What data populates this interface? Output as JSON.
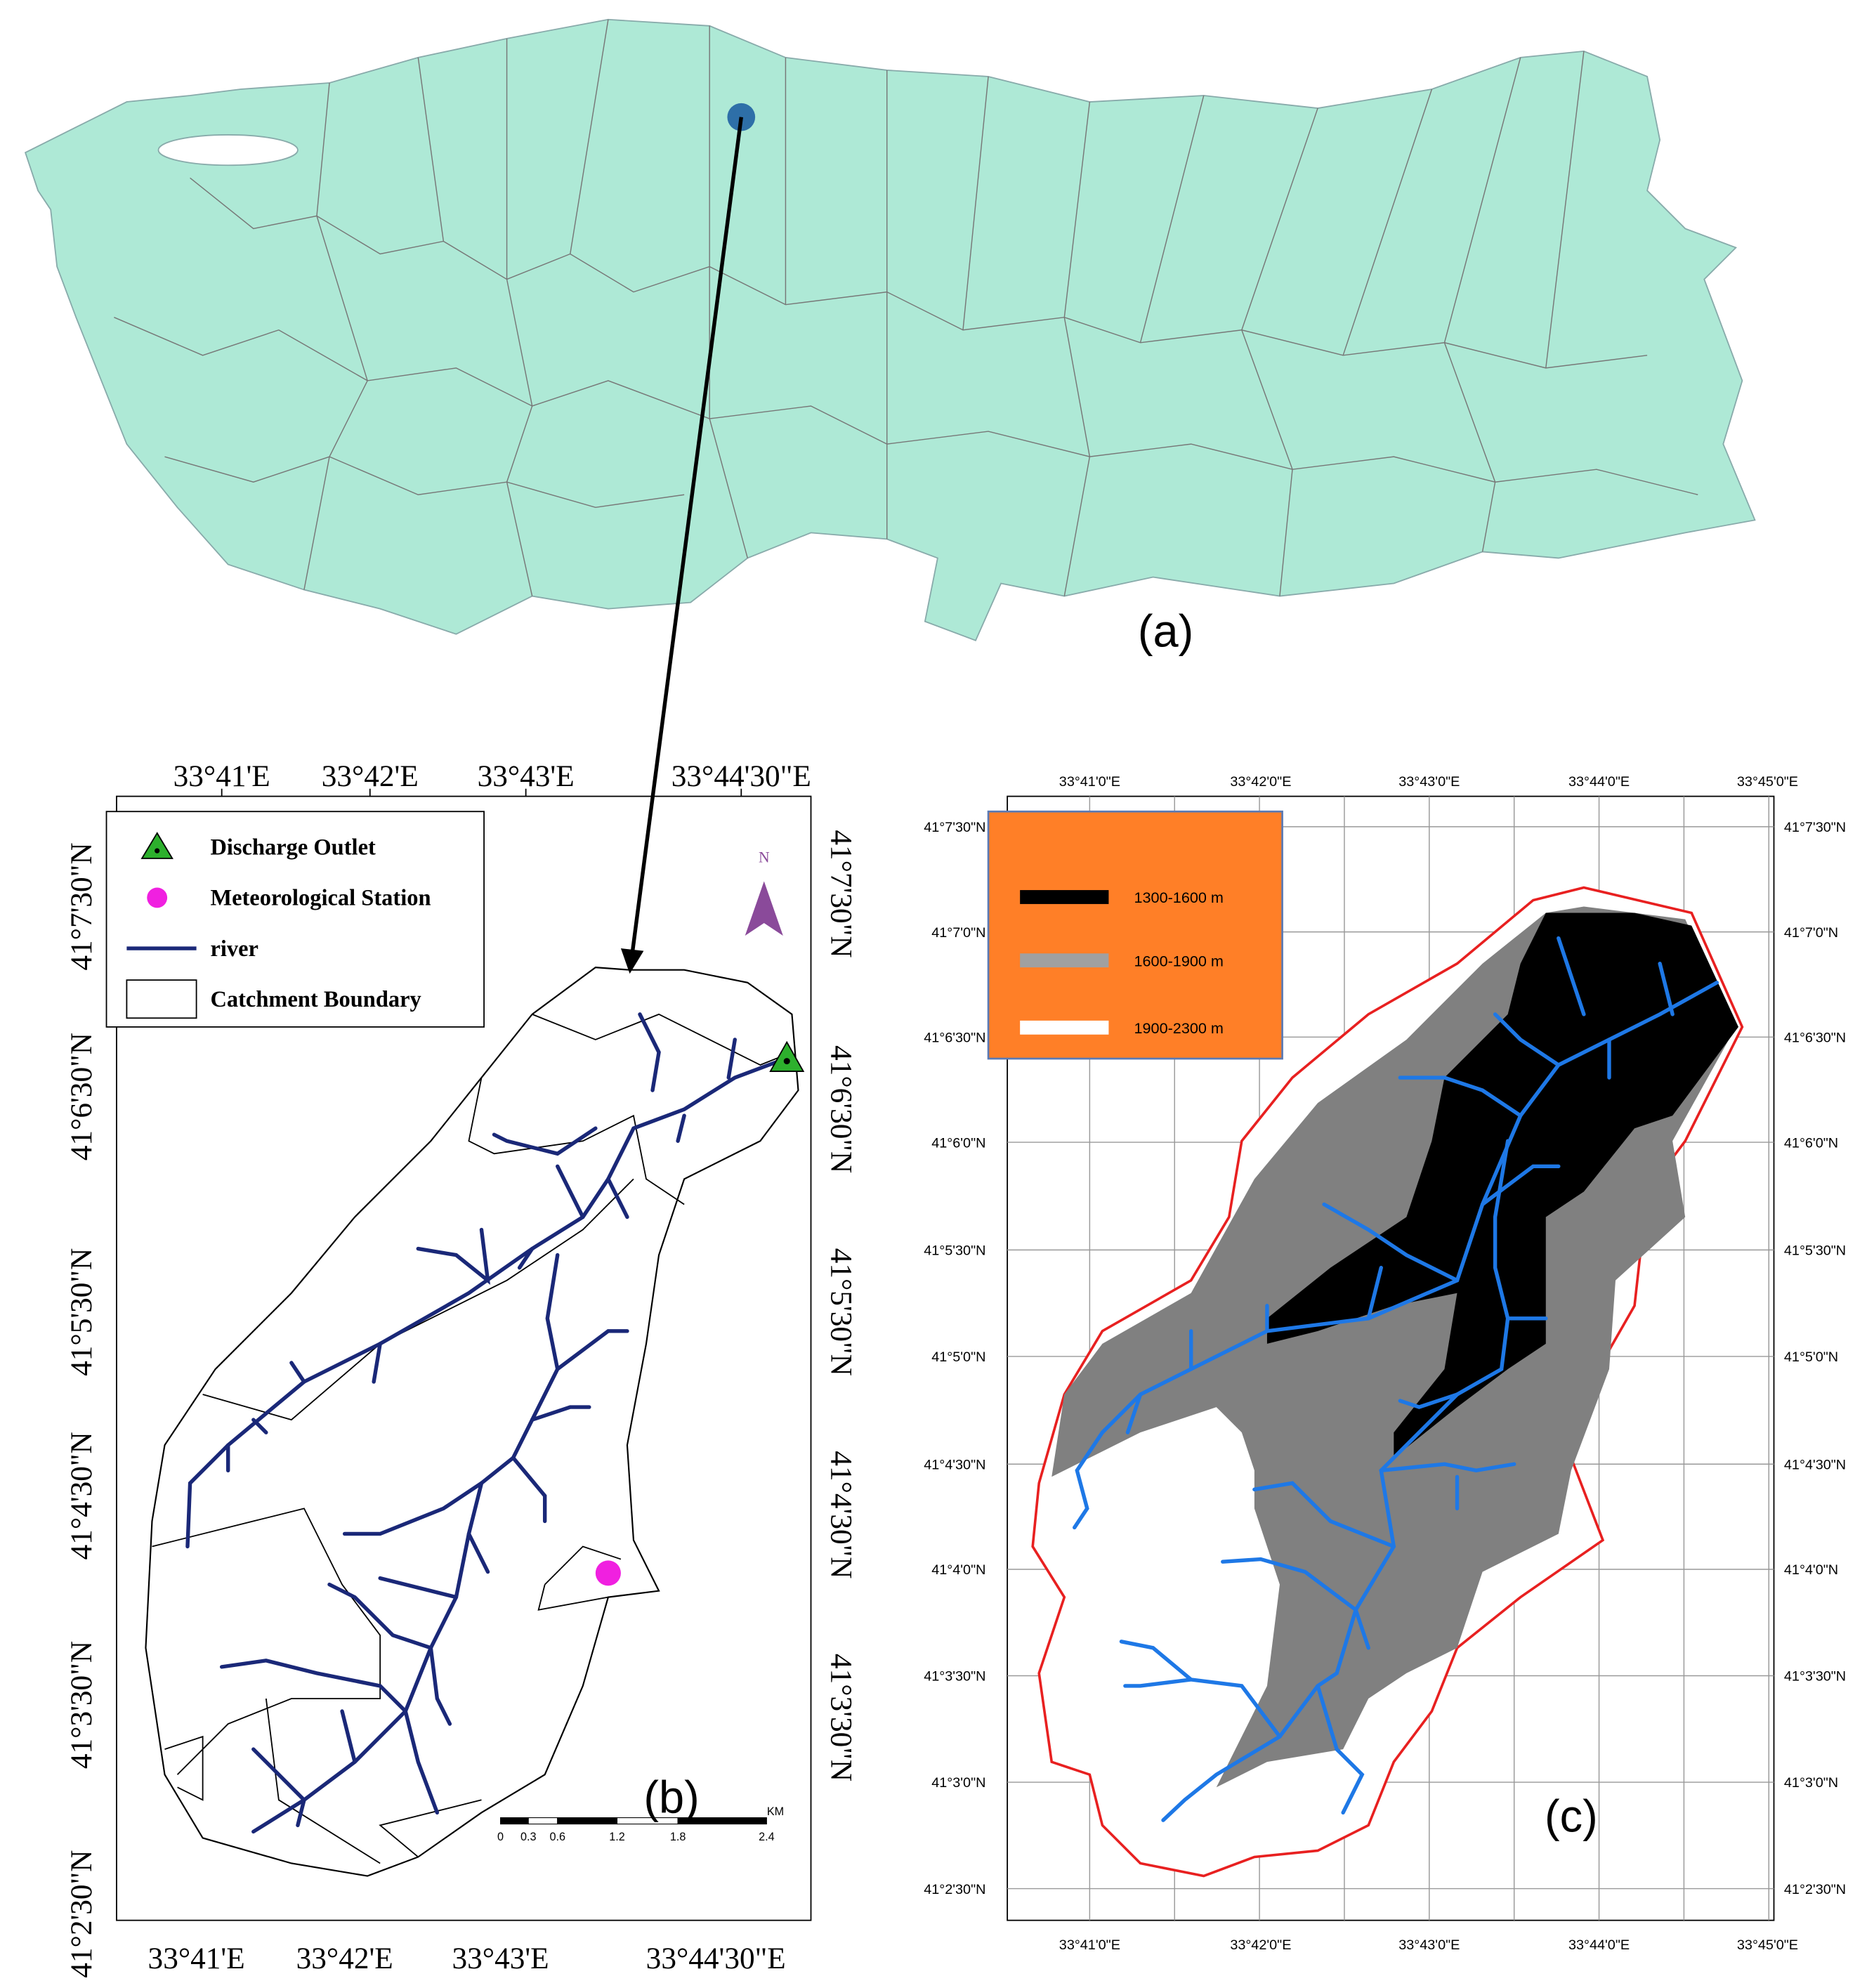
{
  "panel_a": {
    "label": "(a)"
  },
  "panel_b": {
    "label": "(b)",
    "top_ticks": [
      "33°41'E",
      "33°42'E",
      "33°43'E",
      "33°44'30\"E"
    ],
    "bottom_ticks": [
      "33°41'E",
      "33°42'E",
      "33°43'E",
      "33°44'30\"E"
    ],
    "left_ticks": [
      "41°7'30\"N",
      "41°6'30\"N",
      "41°5'30\"N",
      "41°4'30\"N",
      "41°3'30\"N",
      "41°2'30\"N"
    ],
    "right_ticks": [
      "41°7'30\"N",
      "41°6'30\"N",
      "41°5'30\"N",
      "41°4'30\"N",
      "41°3'30\"N"
    ],
    "legend": [
      "Discharge Outlet",
      "Meteorological Station",
      "river",
      "Catchment Boundary"
    ],
    "north": "N",
    "scale_bar": {
      "labels": [
        "0",
        "0.3",
        "0.6",
        "1.2",
        "1.8",
        "2.4"
      ],
      "unit": "KM"
    }
  },
  "panel_c": {
    "label": "(c)",
    "top_ticks": [
      "33°41'0\"E",
      "33°42'0\"E",
      "33°43'0\"E",
      "33°44'0\"E",
      "33°45'0\"E"
    ],
    "bottom_ticks": [
      "33°41'0\"E",
      "33°42'0\"E",
      "33°43'0\"E",
      "33°44'0\"E",
      "33°45'0\"E"
    ],
    "left_ticks": [
      "41°7'30\"N",
      "41°7'0\"N",
      "41°6'30\"N",
      "41°6'0\"N",
      "41°5'30\"N",
      "41°5'0\"N",
      "41°4'30\"N",
      "41°4'0\"N",
      "41°3'30\"N",
      "41°3'0\"N",
      "41°2'30\"N"
    ],
    "right_ticks": [
      "41°7'30\"N",
      "41°7'0\"N",
      "41°6'30\"N",
      "41°6'0\"N",
      "41°5'30\"N",
      "41°5'0\"N",
      "41°4'30\"N",
      "41°4'0\"N",
      "41°3'30\"N",
      "41°3'0\"N",
      "41°2'30\"N"
    ],
    "legend": [
      "1300-1600 m",
      "1600-1900 m",
      "1900-2300 m"
    ]
  }
}
